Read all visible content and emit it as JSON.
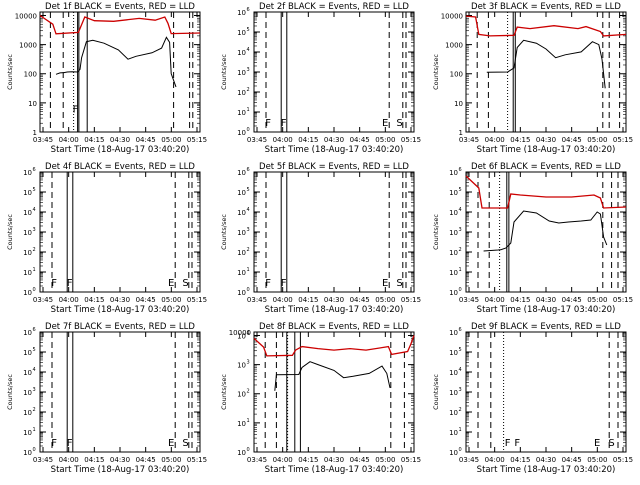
{
  "chart_data": [
    {
      "type": "line",
      "title": "Det 1f BLACK = Events, RED = LLD",
      "ylabel": "Counts/sec",
      "xlabel": "Start Time (18-Aug-17 03:40:20)",
      "y_tick_style": "plain",
      "y_ticks": [
        "1",
        "10",
        "100",
        "1000",
        "10000"
      ],
      "x_ticks": [
        "03:45",
        "04:00",
        "04:15",
        "04:30",
        "04:45",
        "05:00",
        "05:15"
      ],
      "xlim": [
        0,
        100
      ],
      "ylog": [
        0,
        4.12
      ],
      "flags": [
        {
          "text": "F",
          "x": 22.2,
          "y": 0.6
        }
      ],
      "dashed_x": [
        6.5,
        14.5,
        83.5,
        93.5,
        95.5
      ],
      "dotted_x": [
        21.0
      ],
      "solid_x": [
        23.5,
        24.3,
        29.5
      ],
      "series": [
        {
          "color": "#cc0000",
          "points": [
            [
              0,
              4.0
            ],
            [
              8,
              3.7
            ],
            [
              10,
              3.37
            ],
            [
              24,
              3.42
            ],
            [
              28,
              3.95
            ],
            [
              34,
              3.82
            ],
            [
              46,
              3.8
            ],
            [
              62,
              3.9
            ],
            [
              72,
              3.84
            ],
            [
              78,
              3.95
            ],
            [
              80,
              3.73
            ],
            [
              82,
              3.38
            ],
            [
              100,
              3.4
            ]
          ]
        },
        {
          "color": "#000000",
          "points": [
            [
              10,
              1.98
            ],
            [
              12.5,
              2.03
            ],
            [
              15,
              2.04
            ],
            [
              17,
              2.06
            ],
            [
              20,
              2.07
            ],
            [
              23.5,
              2.06
            ],
            [
              25,
              2.15
            ],
            [
              26,
              2.55
            ],
            [
              29,
              3.1
            ],
            [
              33,
              3.15
            ],
            [
              40,
              3.05
            ],
            [
              49,
              2.82
            ],
            [
              55,
              2.5
            ],
            [
              60,
              2.6
            ],
            [
              70,
              2.72
            ],
            [
              76,
              2.88
            ],
            [
              79,
              3.25
            ],
            [
              81,
              3.08
            ],
            [
              82,
              2.0
            ],
            [
              85,
              1.55
            ]
          ]
        }
      ]
    },
    {
      "type": "line",
      "title": "Det 2f BLACK = Events, RED = LLD",
      "ylabel": "Counts/sec",
      "xlabel": "Start Time (18-Aug-17 03:40:20)",
      "y_tick_style": "pow",
      "y_ticks": [
        "0",
        "1",
        "2",
        "3",
        "4",
        "5",
        "6"
      ],
      "x_ticks": [
        "03:45",
        "04:00",
        "04:15",
        "04:30",
        "04:45",
        "05:00",
        "05:15"
      ],
      "xlim": [
        0,
        100
      ],
      "ylog": [
        0,
        6
      ],
      "flags": [
        {
          "text": "F",
          "x": 8.8,
          "y": 0.2
        },
        {
          "text": "F",
          "x": 18.5,
          "y": 0.2
        },
        {
          "text": "E",
          "x": 82.0,
          "y": 0.2
        },
        {
          "text": "S",
          "x": 91.0,
          "y": 0.2
        }
      ],
      "dashed_x": [
        7.5,
        84.5,
        93.0,
        95.0
      ],
      "dotted_x": [],
      "solid_x": [
        17.0,
        20.5
      ],
      "series": []
    },
    {
      "type": "line",
      "title": "Det 3f BLACK = Events, RED = LLD",
      "ylabel": "Counts/sec",
      "xlabel": "Start Time (18-Aug-17 03:40:20)",
      "y_tick_style": "plain",
      "y_ticks": [
        "1",
        "10",
        "100",
        "1000",
        "10000"
      ],
      "x_ticks": [
        "03:45",
        "04:00",
        "04:15",
        "04:30",
        "04:45",
        "05:00",
        "05:15"
      ],
      "xlim": [
        0,
        100
      ],
      "ylog": [
        0,
        4.12
      ],
      "flags": [],
      "dashed_x": [
        7.0,
        14.0,
        85.5,
        89.5,
        96.0
      ],
      "dotted_x": [
        26.0
      ],
      "solid_x": [
        29.5,
        30.8
      ],
      "series": [
        {
          "color": "#cc0000",
          "points": [
            [
              0,
              3.98
            ],
            [
              6,
              3.95
            ],
            [
              8,
              3.35
            ],
            [
              15,
              3.3
            ],
            [
              30,
              3.32
            ],
            [
              32,
              3.6
            ],
            [
              40,
              3.55
            ],
            [
              55,
              3.65
            ],
            [
              70,
              3.55
            ],
            [
              75,
              3.62
            ],
            [
              84,
              3.45
            ],
            [
              86,
              3.3
            ],
            [
              100,
              3.35
            ]
          ]
        },
        {
          "color": "#000000",
          "points": [
            [
              13,
              2.05
            ],
            [
              26,
              2.06
            ],
            [
              30,
              2.2
            ],
            [
              32,
              2.9
            ],
            [
              36,
              3.15
            ],
            [
              44,
              3.05
            ],
            [
              50,
              2.85
            ],
            [
              56,
              2.55
            ],
            [
              62,
              2.65
            ],
            [
              72,
              2.75
            ],
            [
              79,
              3.1
            ],
            [
              83,
              3.0
            ],
            [
              85,
              2.5
            ],
            [
              87,
              1.5
            ]
          ]
        }
      ]
    },
    {
      "type": "line",
      "title": "Det 4f BLACK = Events, RED = LLD",
      "ylabel": "Counts/sec",
      "xlabel": "Start Time (18-Aug-17 03:40:20)",
      "y_tick_style": "pow",
      "y_ticks": [
        "0",
        "1",
        "2",
        "3",
        "4",
        "5",
        "6"
      ],
      "x_ticks": [
        "03:45",
        "04:00",
        "04:15",
        "04:30",
        "04:45",
        "05:00",
        "05:15"
      ],
      "xlim": [
        0,
        100
      ],
      "ylog": [
        0,
        6
      ],
      "flags": [
        {
          "text": "F",
          "x": 8.8,
          "y": 0.2
        },
        {
          "text": "F",
          "x": 18.5,
          "y": 0.2
        },
        {
          "text": "E",
          "x": 82.0,
          "y": 0.2
        },
        {
          "text": "S",
          "x": 91.0,
          "y": 0.2
        }
      ],
      "dashed_x": [
        7.5,
        84.5,
        93.0,
        95.0
      ],
      "dotted_x": [],
      "solid_x": [
        17.0,
        20.5
      ],
      "series": []
    },
    {
      "type": "line",
      "title": "Det 5f BLACK = Events, RED = LLD",
      "ylabel": "Counts/sec",
      "xlabel": "Start Time (18-Aug-17 03:40:20)",
      "y_tick_style": "pow",
      "y_ticks": [
        "0",
        "1",
        "2",
        "3",
        "4",
        "5",
        "6"
      ],
      "x_ticks": [
        "03:45",
        "04:00",
        "04:15",
        "04:30",
        "04:45",
        "05:00",
        "05:15"
      ],
      "xlim": [
        0,
        100
      ],
      "ylog": [
        0,
        6
      ],
      "flags": [
        {
          "text": "F",
          "x": 8.8,
          "y": 0.2
        },
        {
          "text": "F",
          "x": 18.5,
          "y": 0.2
        },
        {
          "text": "E",
          "x": 82.0,
          "y": 0.2
        },
        {
          "text": "S",
          "x": 91.0,
          "y": 0.2
        }
      ],
      "dashed_x": [
        7.5,
        84.5,
        93.0,
        95.0
      ],
      "dotted_x": [],
      "solid_x": [
        17.0,
        20.5
      ],
      "series": []
    },
    {
      "type": "line",
      "title": "Det 6f BLACK = Events, RED = LLD",
      "ylabel": "Counts/sec",
      "xlabel": "Start Time (18-Aug-17 03:40:20)",
      "y_tick_style": "pow",
      "y_ticks": [
        "0",
        "1",
        "2",
        "3",
        "4",
        "5",
        "6"
      ],
      "x_ticks": [
        "03:45",
        "04:00",
        "04:15",
        "04:30",
        "04:45",
        "05:00",
        "05:15"
      ],
      "xlim": [
        0,
        100
      ],
      "ylog": [
        0,
        6
      ],
      "flags": [],
      "dashed_x": [
        7.5,
        14.5,
        85.5,
        91.0,
        95.0
      ],
      "dotted_x": [
        21.0
      ],
      "solid_x": [
        25.5,
        26.8
      ],
      "series": [
        {
          "color": "#cc0000",
          "points": [
            [
              0,
              5.8
            ],
            [
              8,
              5.2
            ],
            [
              10,
              4.2
            ],
            [
              26,
              4.2
            ],
            [
              28,
              4.9
            ],
            [
              34,
              4.85
            ],
            [
              50,
              4.75
            ],
            [
              66,
              4.75
            ],
            [
              80,
              4.85
            ],
            [
              84,
              4.7
            ],
            [
              86,
              4.2
            ],
            [
              100,
              4.25
            ]
          ]
        },
        {
          "color": "#000000",
          "points": [
            [
              11,
              2.05
            ],
            [
              20,
              2.1
            ],
            [
              22,
              2.12
            ],
            [
              25,
              2.2
            ],
            [
              28,
              2.45
            ],
            [
              30,
              3.5
            ],
            [
              36,
              4.05
            ],
            [
              44,
              3.95
            ],
            [
              52,
              3.55
            ],
            [
              58,
              3.45
            ],
            [
              64,
              3.5
            ],
            [
              72,
              3.55
            ],
            [
              78,
              3.6
            ],
            [
              82,
              4.0
            ],
            [
              84,
              3.9
            ],
            [
              86,
              2.75
            ],
            [
              88,
              2.35
            ]
          ]
        }
      ]
    },
    {
      "type": "line",
      "title": "Det 7f BLACK = Events, RED = LLD",
      "ylabel": "Counts/sec",
      "xlabel": "Start Time (18-Aug-17 03:40:20)",
      "y_tick_style": "pow",
      "y_ticks": [
        "0",
        "1",
        "2",
        "3",
        "4",
        "5",
        "6"
      ],
      "x_ticks": [
        "03:45",
        "04:00",
        "04:15",
        "04:30",
        "04:45",
        "05:00",
        "05:15"
      ],
      "xlim": [
        0,
        100
      ],
      "ylog": [
        0,
        6
      ],
      "flags": [
        {
          "text": "F",
          "x": 8.8,
          "y": 0.2
        },
        {
          "text": "F",
          "x": 18.5,
          "y": 0.2
        },
        {
          "text": "E",
          "x": 82.0,
          "y": 0.2
        },
        {
          "text": "S",
          "x": 91.0,
          "y": 0.2
        }
      ],
      "dashed_x": [
        7.5,
        84.5,
        93.0,
        95.0
      ],
      "dotted_x": [],
      "solid_x": [
        17.0,
        20.5
      ],
      "series": []
    },
    {
      "type": "line",
      "title": "Det 8f BLACK = Events, RED = LLD",
      "ylabel": "Counts/sec",
      "xlabel": "Start Time (18-Aug-17 03:40:20)",
      "y_tick_style": "mixed",
      "y_ticks": [
        "0",
        "1",
        "2",
        "3",
        "4",
        "10000"
      ],
      "x_ticks": [
        "03:45",
        "04:00",
        "04:15",
        "04:30",
        "04:45",
        "05:00",
        "05:15"
      ],
      "xlim": [
        0,
        100
      ],
      "ylog": [
        0,
        4.12
      ],
      "flags": [],
      "dashed_x": [
        7.0,
        14.0,
        85.5,
        94.0
      ],
      "dotted_x": [
        21.0
      ],
      "solid_x": [
        20.5,
        25.5,
        29.0
      ],
      "series": [
        {
          "color": "#cc0000",
          "points": [
            [
              0,
              3.9
            ],
            [
              6,
              3.6
            ],
            [
              8,
              3.3
            ],
            [
              24,
              3.32
            ],
            [
              26,
              3.5
            ],
            [
              30,
              3.62
            ],
            [
              40,
              3.55
            ],
            [
              50,
              3.5
            ],
            [
              60,
              3.55
            ],
            [
              70,
              3.5
            ],
            [
              84,
              3.62
            ],
            [
              86,
              3.35
            ],
            [
              96,
              3.45
            ],
            [
              98,
              3.7
            ],
            [
              100,
              4.0
            ]
          ]
        },
        {
          "color": "#000000",
          "points": [
            [
              13,
              2.1
            ],
            [
              14,
              2.65
            ],
            [
              28,
              2.66
            ],
            [
              30,
              2.9
            ],
            [
              35,
              3.1
            ],
            [
              40,
              3.0
            ],
            [
              50,
              2.8
            ],
            [
              56,
              2.55
            ],
            [
              62,
              2.6
            ],
            [
              72,
              2.7
            ],
            [
              80,
              2.95
            ],
            [
              83,
              2.7
            ],
            [
              85,
              2.2
            ]
          ]
        }
      ]
    },
    {
      "type": "line",
      "title": "Det 9f BLACK = Events, RED = LLD",
      "ylabel": "Counts/sec",
      "xlabel": "Start Time (18-Aug-17 03:40:20)",
      "y_tick_style": "pow",
      "y_ticks": [
        "0",
        "1",
        "2",
        "3",
        "4",
        "5",
        "6"
      ],
      "x_ticks": [
        "03:45",
        "04:00",
        "04:15",
        "04:30",
        "04:45",
        "05:00",
        "05:15"
      ],
      "xlim": [
        0,
        100
      ],
      "ylog": [
        0,
        6
      ],
      "flags": [
        {
          "text": "F",
          "x": 26.0,
          "y": 0.2
        },
        {
          "text": "F",
          "x": 32.0,
          "y": 0.2
        },
        {
          "text": "E",
          "x": 82.0,
          "y": 0.2
        },
        {
          "text": "S",
          "x": 91.0,
          "y": 0.2
        }
      ],
      "dashed_x": [
        7.5,
        15.5,
        89.5,
        95.0
      ],
      "dotted_x": [
        23.5
      ],
      "solid_x": [],
      "series": []
    }
  ]
}
